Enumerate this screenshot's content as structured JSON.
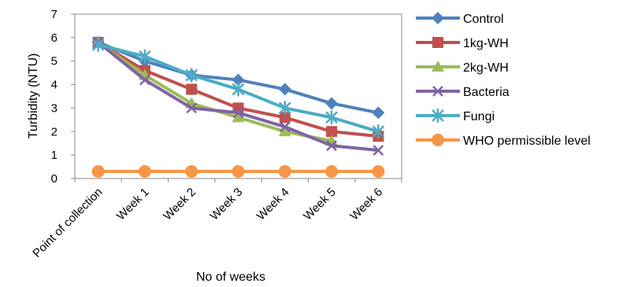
{
  "chart_data": {
    "type": "line",
    "title": "",
    "xlabel": "No of weeks",
    "ylabel": "Turbidity (NTU)",
    "ylim": [
      0,
      7
    ],
    "yticks": [
      0,
      1,
      2,
      3,
      4,
      5,
      6,
      7
    ],
    "grid": false,
    "legend_position": "right",
    "categories": [
      "Point of collection",
      "Week 1",
      "Week 2",
      "Week 3",
      "Week 4",
      "Week 5",
      "Week 6"
    ],
    "series": [
      {
        "name": "Control",
        "values": [
          5.8,
          5.0,
          4.4,
          4.2,
          3.8,
          3.2,
          2.8
        ],
        "color": "#4F81BD",
        "marker": "diamond"
      },
      {
        "name": "1kg-WH",
        "values": [
          5.8,
          4.6,
          3.8,
          3.0,
          2.6,
          2.0,
          1.8
        ],
        "color": "#C0504D",
        "marker": "square"
      },
      {
        "name": "2kg-WH",
        "values": [
          5.8,
          4.4,
          3.2,
          2.6,
          2.0,
          1.6,
          null
        ],
        "color": "#9BBB59",
        "marker": "triangle"
      },
      {
        "name": "Bacteria",
        "values": [
          5.8,
          4.2,
          3.0,
          2.8,
          2.2,
          1.4,
          1.2
        ],
        "color": "#8064A2",
        "marker": "x"
      },
      {
        "name": "Fungi",
        "values": [
          5.7,
          5.2,
          4.4,
          3.8,
          3.0,
          2.6,
          2.0
        ],
        "color": "#4BACC6",
        "marker": "star"
      },
      {
        "name": "WHO permissible level",
        "values": [
          0.3,
          0.3,
          0.3,
          0.3,
          0.3,
          0.3,
          0.3
        ],
        "color": "#F79646",
        "marker": "circle"
      }
    ]
  }
}
